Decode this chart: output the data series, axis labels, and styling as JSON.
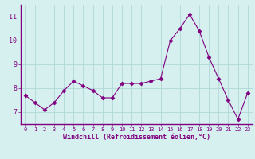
{
  "x": [
    0,
    1,
    2,
    3,
    4,
    5,
    6,
    7,
    8,
    9,
    10,
    11,
    12,
    13,
    14,
    15,
    16,
    17,
    18,
    19,
    20,
    21,
    22,
    23
  ],
  "y": [
    7.7,
    7.4,
    7.1,
    7.4,
    7.9,
    8.3,
    8.1,
    7.9,
    7.6,
    7.6,
    8.2,
    8.2,
    8.2,
    8.3,
    8.4,
    10.0,
    10.5,
    11.1,
    10.4,
    9.3,
    8.4,
    7.5,
    6.7,
    7.8
  ],
  "line_color": "#800080",
  "marker": "D",
  "marker_size": 2.5,
  "bg_color": "#d6f0f0",
  "grid_color": "#b0d8d8",
  "xlabel": "Windchill (Refroidissement éolien,°C)",
  "xlabel_color": "#800080",
  "ylim": [
    6.5,
    11.5
  ],
  "xlim": [
    -0.5,
    23.5
  ],
  "yticks": [
    7,
    8,
    9,
    10,
    11
  ],
  "xticks": [
    0,
    1,
    2,
    3,
    4,
    5,
    6,
    7,
    8,
    9,
    10,
    11,
    12,
    13,
    14,
    15,
    16,
    17,
    18,
    19,
    20,
    21,
    22,
    23
  ],
  "tick_color": "#800080",
  "spine_color": "#800080",
  "axis_bg": "#d6f0f0",
  "tick_fontsize": 5,
  "xlabel_fontsize": 6,
  "ytick_fontsize": 6
}
